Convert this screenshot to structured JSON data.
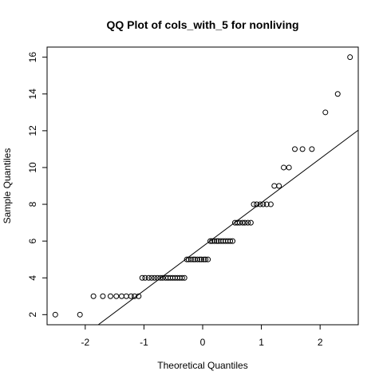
{
  "chart_data": {
    "type": "scatter",
    "title": "QQ Plot of cols_with_5 for nonliving",
    "xlabel": "Theoretical Quantiles",
    "ylabel": "Sample Quantiles",
    "xlim": [
      -2.65,
      2.65
    ],
    "ylim": [
      1.45,
      16.55
    ],
    "x_ticks": [
      -2,
      -1,
      0,
      1,
      2
    ],
    "x_tick_labels": [
      "-2",
      "-1",
      "0",
      "1",
      "2"
    ],
    "y_ticks": [
      2,
      4,
      6,
      8,
      10,
      12,
      14,
      16
    ],
    "y_tick_labels": [
      "2",
      "4",
      "6",
      "8",
      "10",
      "12",
      "14",
      "16"
    ],
    "grid": false,
    "reference_line": {
      "slope": 2.39,
      "intercept": 5.7
    },
    "points": [
      {
        "x": -2.51,
        "y": 2
      },
      {
        "x": -2.09,
        "y": 2
      },
      {
        "x": -1.86,
        "y": 3
      },
      {
        "x": -1.7,
        "y": 3
      },
      {
        "x": -1.57,
        "y": 3
      },
      {
        "x": -1.47,
        "y": 3
      },
      {
        "x": -1.38,
        "y": 3
      },
      {
        "x": -1.3,
        "y": 3
      },
      {
        "x": -1.22,
        "y": 3
      },
      {
        "x": -1.16,
        "y": 3
      },
      {
        "x": -1.09,
        "y": 3
      },
      {
        "x": -1.03,
        "y": 4
      },
      {
        "x": -0.98,
        "y": 4
      },
      {
        "x": -0.92,
        "y": 4
      },
      {
        "x": -0.87,
        "y": 4
      },
      {
        "x": -0.82,
        "y": 4
      },
      {
        "x": -0.77,
        "y": 4
      },
      {
        "x": -0.72,
        "y": 4
      },
      {
        "x": -0.68,
        "y": 4
      },
      {
        "x": -0.63,
        "y": 4
      },
      {
        "x": -0.59,
        "y": 4
      },
      {
        "x": -0.55,
        "y": 4
      },
      {
        "x": -0.51,
        "y": 4
      },
      {
        "x": -0.47,
        "y": 4
      },
      {
        "x": -0.43,
        "y": 4
      },
      {
        "x": -0.39,
        "y": 4
      },
      {
        "x": -0.35,
        "y": 4
      },
      {
        "x": -0.31,
        "y": 4
      },
      {
        "x": -0.27,
        "y": 5
      },
      {
        "x": -0.24,
        "y": 5
      },
      {
        "x": -0.2,
        "y": 5
      },
      {
        "x": -0.16,
        "y": 5
      },
      {
        "x": -0.13,
        "y": 5
      },
      {
        "x": -0.09,
        "y": 5
      },
      {
        "x": -0.05,
        "y": 5
      },
      {
        "x": -0.02,
        "y": 5
      },
      {
        "x": 0.02,
        "y": 5
      },
      {
        "x": 0.05,
        "y": 5
      },
      {
        "x": 0.09,
        "y": 5
      },
      {
        "x": 0.13,
        "y": 6
      },
      {
        "x": 0.16,
        "y": 6
      },
      {
        "x": 0.2,
        "y": 6
      },
      {
        "x": 0.24,
        "y": 6
      },
      {
        "x": 0.27,
        "y": 6
      },
      {
        "x": 0.31,
        "y": 6
      },
      {
        "x": 0.35,
        "y": 6
      },
      {
        "x": 0.39,
        "y": 6
      },
      {
        "x": 0.43,
        "y": 6
      },
      {
        "x": 0.47,
        "y": 6
      },
      {
        "x": 0.51,
        "y": 6
      },
      {
        "x": 0.55,
        "y": 7
      },
      {
        "x": 0.59,
        "y": 7
      },
      {
        "x": 0.63,
        "y": 7
      },
      {
        "x": 0.68,
        "y": 7
      },
      {
        "x": 0.72,
        "y": 7
      },
      {
        "x": 0.77,
        "y": 7
      },
      {
        "x": 0.82,
        "y": 7
      },
      {
        "x": 0.87,
        "y": 8
      },
      {
        "x": 0.92,
        "y": 8
      },
      {
        "x": 0.98,
        "y": 8
      },
      {
        "x": 1.03,
        "y": 8
      },
      {
        "x": 1.09,
        "y": 8
      },
      {
        "x": 1.16,
        "y": 8
      },
      {
        "x": 1.22,
        "y": 9
      },
      {
        "x": 1.3,
        "y": 9
      },
      {
        "x": 1.38,
        "y": 10
      },
      {
        "x": 1.47,
        "y": 10
      },
      {
        "x": 1.57,
        "y": 11
      },
      {
        "x": 1.7,
        "y": 11
      },
      {
        "x": 1.86,
        "y": 11
      },
      {
        "x": 2.09,
        "y": 13
      },
      {
        "x": 2.3,
        "y": 14
      },
      {
        "x": 2.51,
        "y": 16
      }
    ]
  }
}
